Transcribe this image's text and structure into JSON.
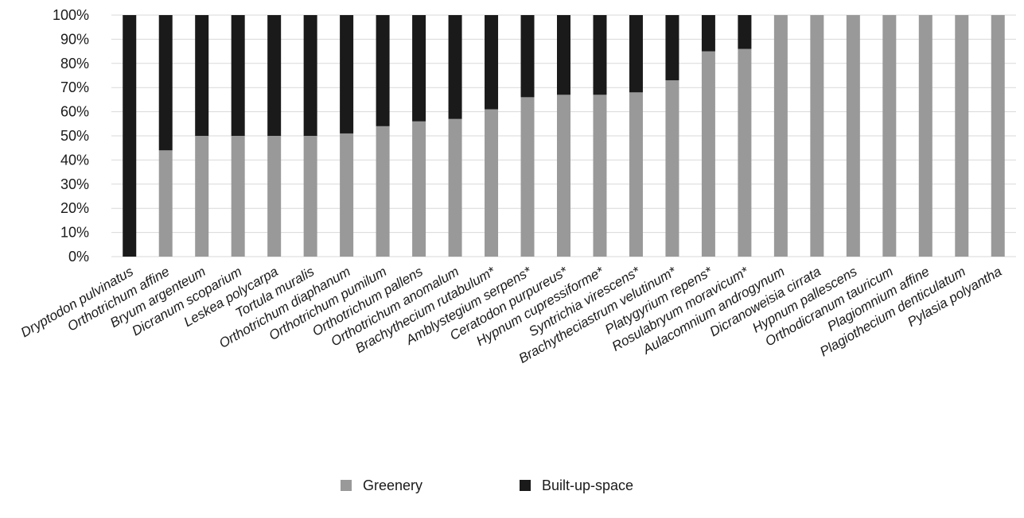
{
  "chart_data": {
    "type": "bar",
    "stacked": true,
    "percent": true,
    "title": "",
    "xlabel": "",
    "ylabel": "",
    "ylim": [
      0,
      100
    ],
    "yticks": [
      "0%",
      "10%",
      "20%",
      "30%",
      "40%",
      "50%",
      "60%",
      "70%",
      "80%",
      "90%",
      "100%"
    ],
    "grid": true,
    "legend_position": "bottom",
    "categories": [
      "Dryptodon pulvinatus",
      "Orthotrichum affine",
      "Bryum argenteum",
      "Dicranum scoparium",
      "Leskea polycarpa",
      "Tortula muralis",
      "Orthotrichum diaphanum",
      "Orthotrichum pumilum",
      "Orthotrichum pallens",
      "Orthotrichum anomalum",
      "Brachythecium rutabulum*",
      "Amblystegium serpens*",
      "Ceratodon purpureus*",
      "Hypnum cupressiforme*",
      "Syntrichia virescens*",
      "Brachytheciastrum velutinum*",
      "Platygyrium repens*",
      "Rosulabryum moravicum*",
      "Aulacomnium androgynum",
      "Dicranoweisia cirrata",
      "Hypnum pallescens",
      "Orthodicranum tauricum",
      "Plagiomnium affine",
      "Plagiothecium denticulatum",
      "Pylasia polyantha"
    ],
    "series": [
      {
        "name": "Greenery",
        "color": "#999999",
        "values": [
          0,
          44,
          50,
          50,
          50,
          50,
          51,
          54,
          56,
          57,
          61,
          66,
          67,
          67,
          68,
          73,
          85,
          86,
          100,
          100,
          100,
          100,
          100,
          100,
          100
        ]
      },
      {
        "name": "Built-up-space",
        "color": "#1a1a1a",
        "values": [
          100,
          56,
          50,
          50,
          50,
          50,
          49,
          46,
          44,
          43,
          39,
          34,
          33,
          33,
          32,
          27,
          15,
          14,
          0,
          0,
          0,
          0,
          0,
          0,
          0
        ]
      }
    ]
  }
}
